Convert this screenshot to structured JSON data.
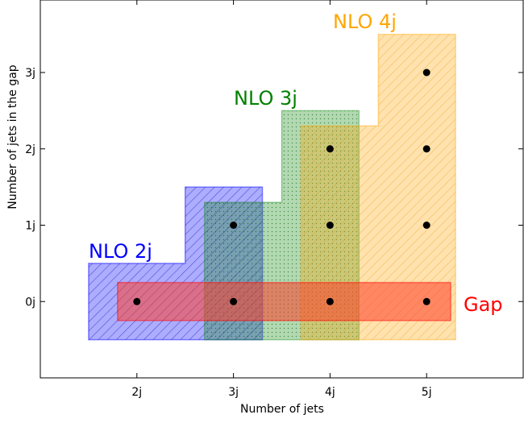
{
  "chart_data": {
    "type": "scatter",
    "xlabel": "Number of jets",
    "ylabel": "Number of jets in the gap",
    "xlim": [
      1.0,
      6.0
    ],
    "ylim": [
      -1.0,
      3.95
    ],
    "x_ticks": [
      {
        "value": 2,
        "label": "2j"
      },
      {
        "value": 3,
        "label": "3j"
      },
      {
        "value": 4,
        "label": "4j"
      },
      {
        "value": 5,
        "label": "5j"
      }
    ],
    "y_ticks": [
      {
        "value": 0,
        "label": "0j"
      },
      {
        "value": 1,
        "label": "1j"
      },
      {
        "value": 2,
        "label": "2j"
      },
      {
        "value": 3,
        "label": "3j"
      }
    ],
    "points": [
      {
        "x": 2,
        "y": 0
      },
      {
        "x": 3,
        "y": 0
      },
      {
        "x": 3,
        "y": 1
      },
      {
        "x": 4,
        "y": 0
      },
      {
        "x": 4,
        "y": 1
      },
      {
        "x": 4,
        "y": 2
      },
      {
        "x": 5,
        "y": 0
      },
      {
        "x": 5,
        "y": 1
      },
      {
        "x": 5,
        "y": 2
      },
      {
        "x": 5,
        "y": 3
      }
    ],
    "regions": [
      {
        "label": "NLO 2j",
        "color": "#0000ff",
        "pattern": "diagonal-hatch",
        "outline": [
          [
            1.5,
            -0.5
          ],
          [
            1.5,
            0.5
          ],
          [
            2.5,
            0.5
          ],
          [
            2.5,
            1.5
          ],
          [
            3.3,
            1.5
          ],
          [
            3.3,
            -0.5
          ]
        ]
      },
      {
        "label": "NLO 3j",
        "color": "#008000",
        "pattern": "dots",
        "outline": [
          [
            2.7,
            -0.5
          ],
          [
            2.7,
            1.3
          ],
          [
            3.5,
            1.3
          ],
          [
            3.5,
            2.5
          ],
          [
            4.3,
            2.5
          ],
          [
            4.3,
            -0.5
          ]
        ]
      },
      {
        "label": "NLO 4j",
        "color": "#ffa500",
        "pattern": "diagonal-hatch",
        "outline": [
          [
            3.7,
            -0.5
          ],
          [
            3.7,
            2.3
          ],
          [
            4.5,
            2.3
          ],
          [
            4.5,
            3.5
          ],
          [
            5.3,
            3.5
          ],
          [
            5.3,
            -0.5
          ]
        ]
      },
      {
        "label": "Gap",
        "color": "#ff0000",
        "pattern": "solid",
        "outline": [
          [
            1.8,
            -0.25
          ],
          [
            1.8,
            0.25
          ],
          [
            5.25,
            0.25
          ],
          [
            5.25,
            -0.25
          ]
        ]
      }
    ],
    "grid": false,
    "legend": "none"
  }
}
